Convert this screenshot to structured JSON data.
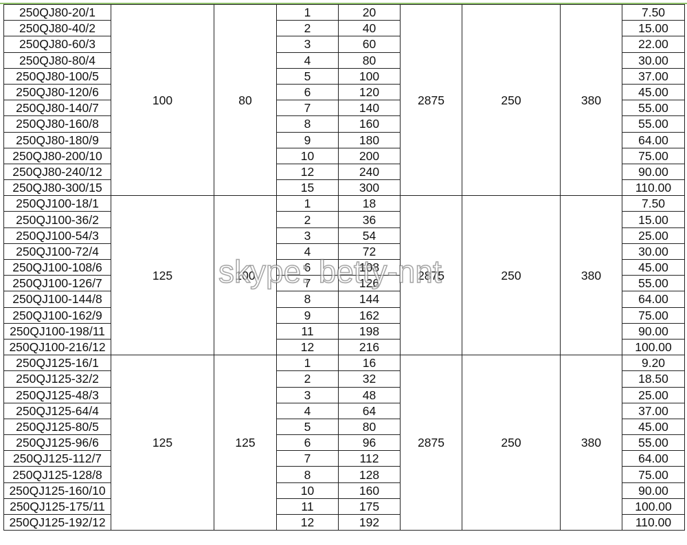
{
  "watermark": "skype: betty-nnt",
  "colors": {
    "top_line": "#8fc06a",
    "border": "#222222"
  },
  "groups": [
    {
      "col2": "100",
      "col3": "80",
      "col6": "2875",
      "col7": "250",
      "col8": "380",
      "rows": [
        [
          "250QJ80-20/1",
          "1",
          "20",
          "7.50"
        ],
        [
          "250QJ80-40/2",
          "2",
          "40",
          "15.00"
        ],
        [
          "250QJ80-60/3",
          "3",
          "60",
          "22.00"
        ],
        [
          "250QJ80-80/4",
          "4",
          "80",
          "30.00"
        ],
        [
          "250QJ80-100/5",
          "5",
          "100",
          "37.00"
        ],
        [
          "250QJ80-120/6",
          "6",
          "120",
          "45.00"
        ],
        [
          "250QJ80-140/7",
          "7",
          "140",
          "55.00"
        ],
        [
          "250QJ80-160/8",
          "8",
          "160",
          "55.00"
        ],
        [
          "250QJ80-180/9",
          "9",
          "180",
          "64.00"
        ],
        [
          "250QJ80-200/10",
          "10",
          "200",
          "75.00"
        ],
        [
          "250QJ80-240/12",
          "12",
          "240",
          "90.00"
        ],
        [
          "250QJ80-300/15",
          "15",
          "300",
          "110.00"
        ]
      ]
    },
    {
      "col2": "125",
      "col3": "100",
      "col6": "2875",
      "col7": "250",
      "col8": "380",
      "rows": [
        [
          "250QJ100-18/1",
          "1",
          "18",
          "7.50"
        ],
        [
          "250QJ100-36/2",
          "2",
          "36",
          "15.00"
        ],
        [
          "250QJ100-54/3",
          "3",
          "54",
          "25.00"
        ],
        [
          "250QJ100-72/4",
          "4",
          "72",
          "30.00"
        ],
        [
          "250QJ100-108/6",
          "6",
          "108",
          "45.00"
        ],
        [
          "250QJ100-126/7",
          "7",
          "126",
          "55.00"
        ],
        [
          "250QJ100-144/8",
          "8",
          "144",
          "64.00"
        ],
        [
          "250QJ100-162/9",
          "9",
          "162",
          "75.00"
        ],
        [
          "250QJ100-198/11",
          "11",
          "198",
          "90.00"
        ],
        [
          "250QJ100-216/12",
          "12",
          "216",
          "100.00"
        ]
      ]
    },
    {
      "col2": "125",
      "col3": "125",
      "col6": "2875",
      "col7": "250",
      "col8": "380",
      "rows": [
        [
          "250QJ125-16/1",
          "1",
          "16",
          "9.20"
        ],
        [
          "250QJ125-32/2",
          "2",
          "32",
          "18.50"
        ],
        [
          "250QJ125-48/3",
          "3",
          "48",
          "25.00"
        ],
        [
          "250QJ125-64/4",
          "4",
          "64",
          "37.00"
        ],
        [
          "250QJ125-80/5",
          "5",
          "80",
          "45.00"
        ],
        [
          "250QJ125-96/6",
          "6",
          "96",
          "55.00"
        ],
        [
          "250QJ125-112/7",
          "7",
          "112",
          "64.00"
        ],
        [
          "250QJ125-128/8",
          "8",
          "128",
          "75.00"
        ],
        [
          "250QJ125-160/10",
          "10",
          "160",
          "90.00"
        ],
        [
          "250QJ125-175/11",
          "11",
          "175",
          "100.00"
        ],
        [
          "250QJ125-192/12",
          "12",
          "192",
          "110.00"
        ]
      ]
    }
  ]
}
